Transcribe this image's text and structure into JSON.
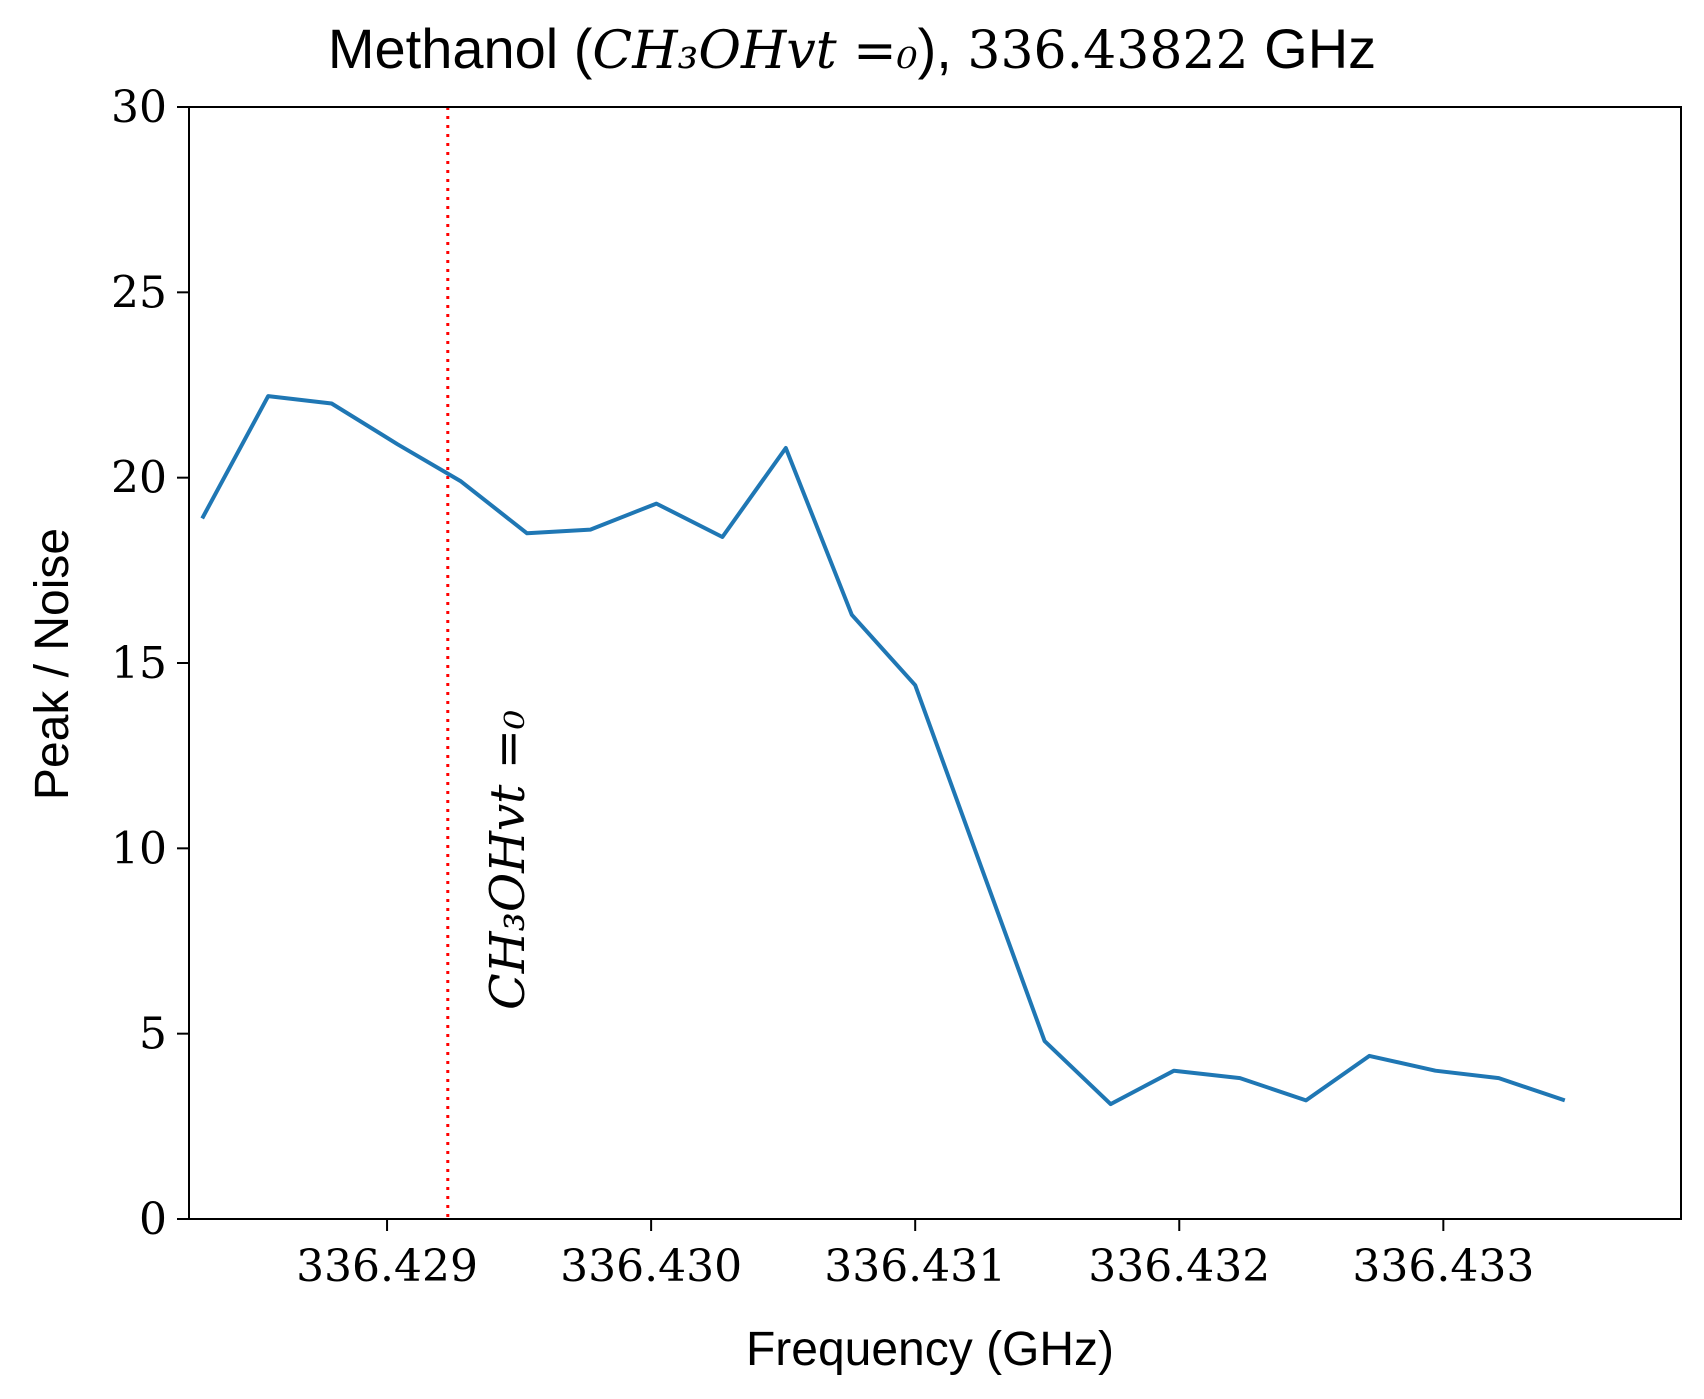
{
  "chart_data": {
    "type": "line",
    "title_prefix": "Methanol (",
    "title_formula": "CH₃OHvt =₀",
    "title_suffix": "), ",
    "title_freq": "336.43822",
    "title_unit": " GHz",
    "xlabel": "Frequency (GHz)",
    "ylabel": "Peak / Noise",
    "xlim": [
      336.42825,
      336.4339
    ],
    "ylim": [
      0,
      30
    ],
    "x_ticks": [
      336.429,
      336.43,
      336.431,
      336.432,
      336.433
    ],
    "x_tick_labels": [
      "336.429",
      "336.430",
      "336.431",
      "336.432",
      "336.433"
    ],
    "y_ticks": [
      0,
      5,
      10,
      15,
      20,
      25,
      30
    ],
    "y_tick_labels": [
      "0",
      "5",
      "10",
      "15",
      "20",
      "25",
      "30"
    ],
    "grid": false,
    "series": [
      {
        "color": "#1f77b4",
        "x": [
          336.4283,
          336.42855,
          336.42879,
          336.42904,
          336.42928,
          336.42953,
          336.42977,
          336.43002,
          336.43027,
          336.43051,
          336.43076,
          336.431,
          336.43125,
          336.43149,
          336.43174,
          336.43198,
          336.43223,
          336.43248,
          336.43272,
          336.43297,
          336.43321,
          336.43346
        ],
        "y": [
          18.9,
          22.2,
          22.0,
          20.9,
          19.9,
          18.5,
          18.6,
          19.3,
          18.4,
          20.8,
          16.3,
          14.4,
          9.5,
          4.8,
          3.1,
          4.0,
          3.8,
          3.2,
          4.4,
          4.0,
          3.8,
          3.2
        ]
      }
    ],
    "vline": {
      "x": 336.42923,
      "color": "#ff0000",
      "style": "dotted",
      "label": "CH₃OHvt =₀"
    }
  }
}
